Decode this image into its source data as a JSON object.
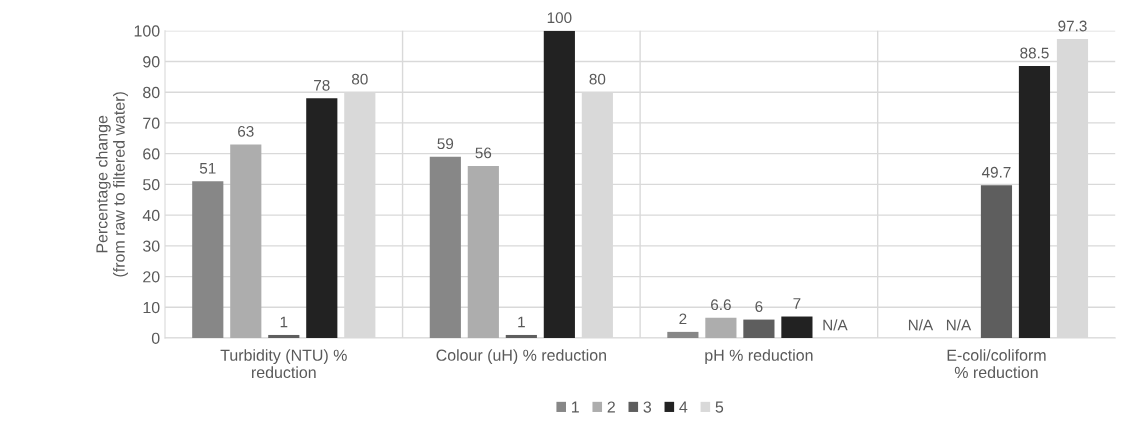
{
  "chart_data": {
    "type": "bar",
    "ylabel": "Percentage change\n(from raw to filtered water)",
    "categories": [
      "Turbidity (NTU) %\nreduction",
      "Colour (uH) % reduction",
      "pH % reduction",
      "E-coli/coliform\n% reduction"
    ],
    "series": [
      {
        "name": "1",
        "color": "#878787",
        "values": [
          51,
          59,
          2,
          null
        ],
        "value_labels": [
          "51",
          "59",
          "2",
          "N/A"
        ]
      },
      {
        "name": "2",
        "color": "#adadad",
        "values": [
          63,
          56,
          6.6,
          null
        ],
        "value_labels": [
          "63",
          "56",
          "6.6",
          "N/A"
        ]
      },
      {
        "name": "3",
        "color": "#5e5e5e",
        "values": [
          1,
          1,
          6,
          49.7
        ],
        "value_labels": [
          "1",
          "1",
          "6",
          "49.7"
        ]
      },
      {
        "name": "4",
        "color": "#222222",
        "values": [
          78,
          100,
          7,
          88.5
        ],
        "value_labels": [
          "78",
          "100",
          "7",
          "88.5"
        ]
      },
      {
        "name": "5",
        "color": "#d9d9d9",
        "values": [
          80,
          80,
          null,
          97.3
        ],
        "value_labels": [
          "80",
          "80",
          "N/A",
          "97.3"
        ]
      }
    ],
    "ylim": [
      0,
      100
    ],
    "yticks": [
      0,
      10,
      20,
      30,
      40,
      50,
      60,
      70,
      80,
      90,
      100
    ],
    "grid": true,
    "legend": "bottom"
  }
}
